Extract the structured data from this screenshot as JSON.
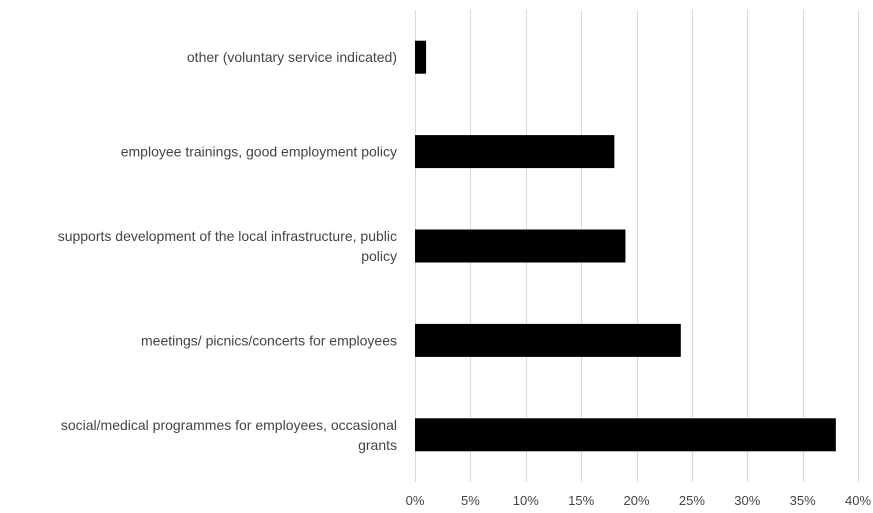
{
  "chart_data": {
    "type": "bar",
    "orientation": "horizontal",
    "categories": [
      "other (voluntary service indicated)",
      "employee trainings, good employment policy",
      "supports development of the local infrastructure, public policy",
      "meetings/ picnics/concerts for employees",
      "social/medical programmes for employees, occasional grants"
    ],
    "category_lines": [
      [
        "other (voluntary service indicated)"
      ],
      [
        "employee trainings, good employment policy"
      ],
      [
        "supports development of the local infrastructure, public",
        "policy"
      ],
      [
        "meetings/ picnics/concerts for employees"
      ],
      [
        "social/medical programmes for employees, occasional",
        "grants"
      ]
    ],
    "values": [
      1,
      18,
      19,
      24,
      38
    ],
    "xlim": [
      0,
      40
    ],
    "xticks": [
      0,
      5,
      10,
      15,
      20,
      25,
      30,
      35,
      40
    ],
    "xtick_labels": [
      "0%",
      "5%",
      "10%",
      "15%",
      "20%",
      "25%",
      "30%",
      "35%",
      "40%"
    ],
    "title": "",
    "xlabel": "",
    "ylabel": "",
    "grid": "vertical",
    "legend": "none",
    "bar_color": "#000000",
    "grid_color": "#d9d9d9"
  }
}
